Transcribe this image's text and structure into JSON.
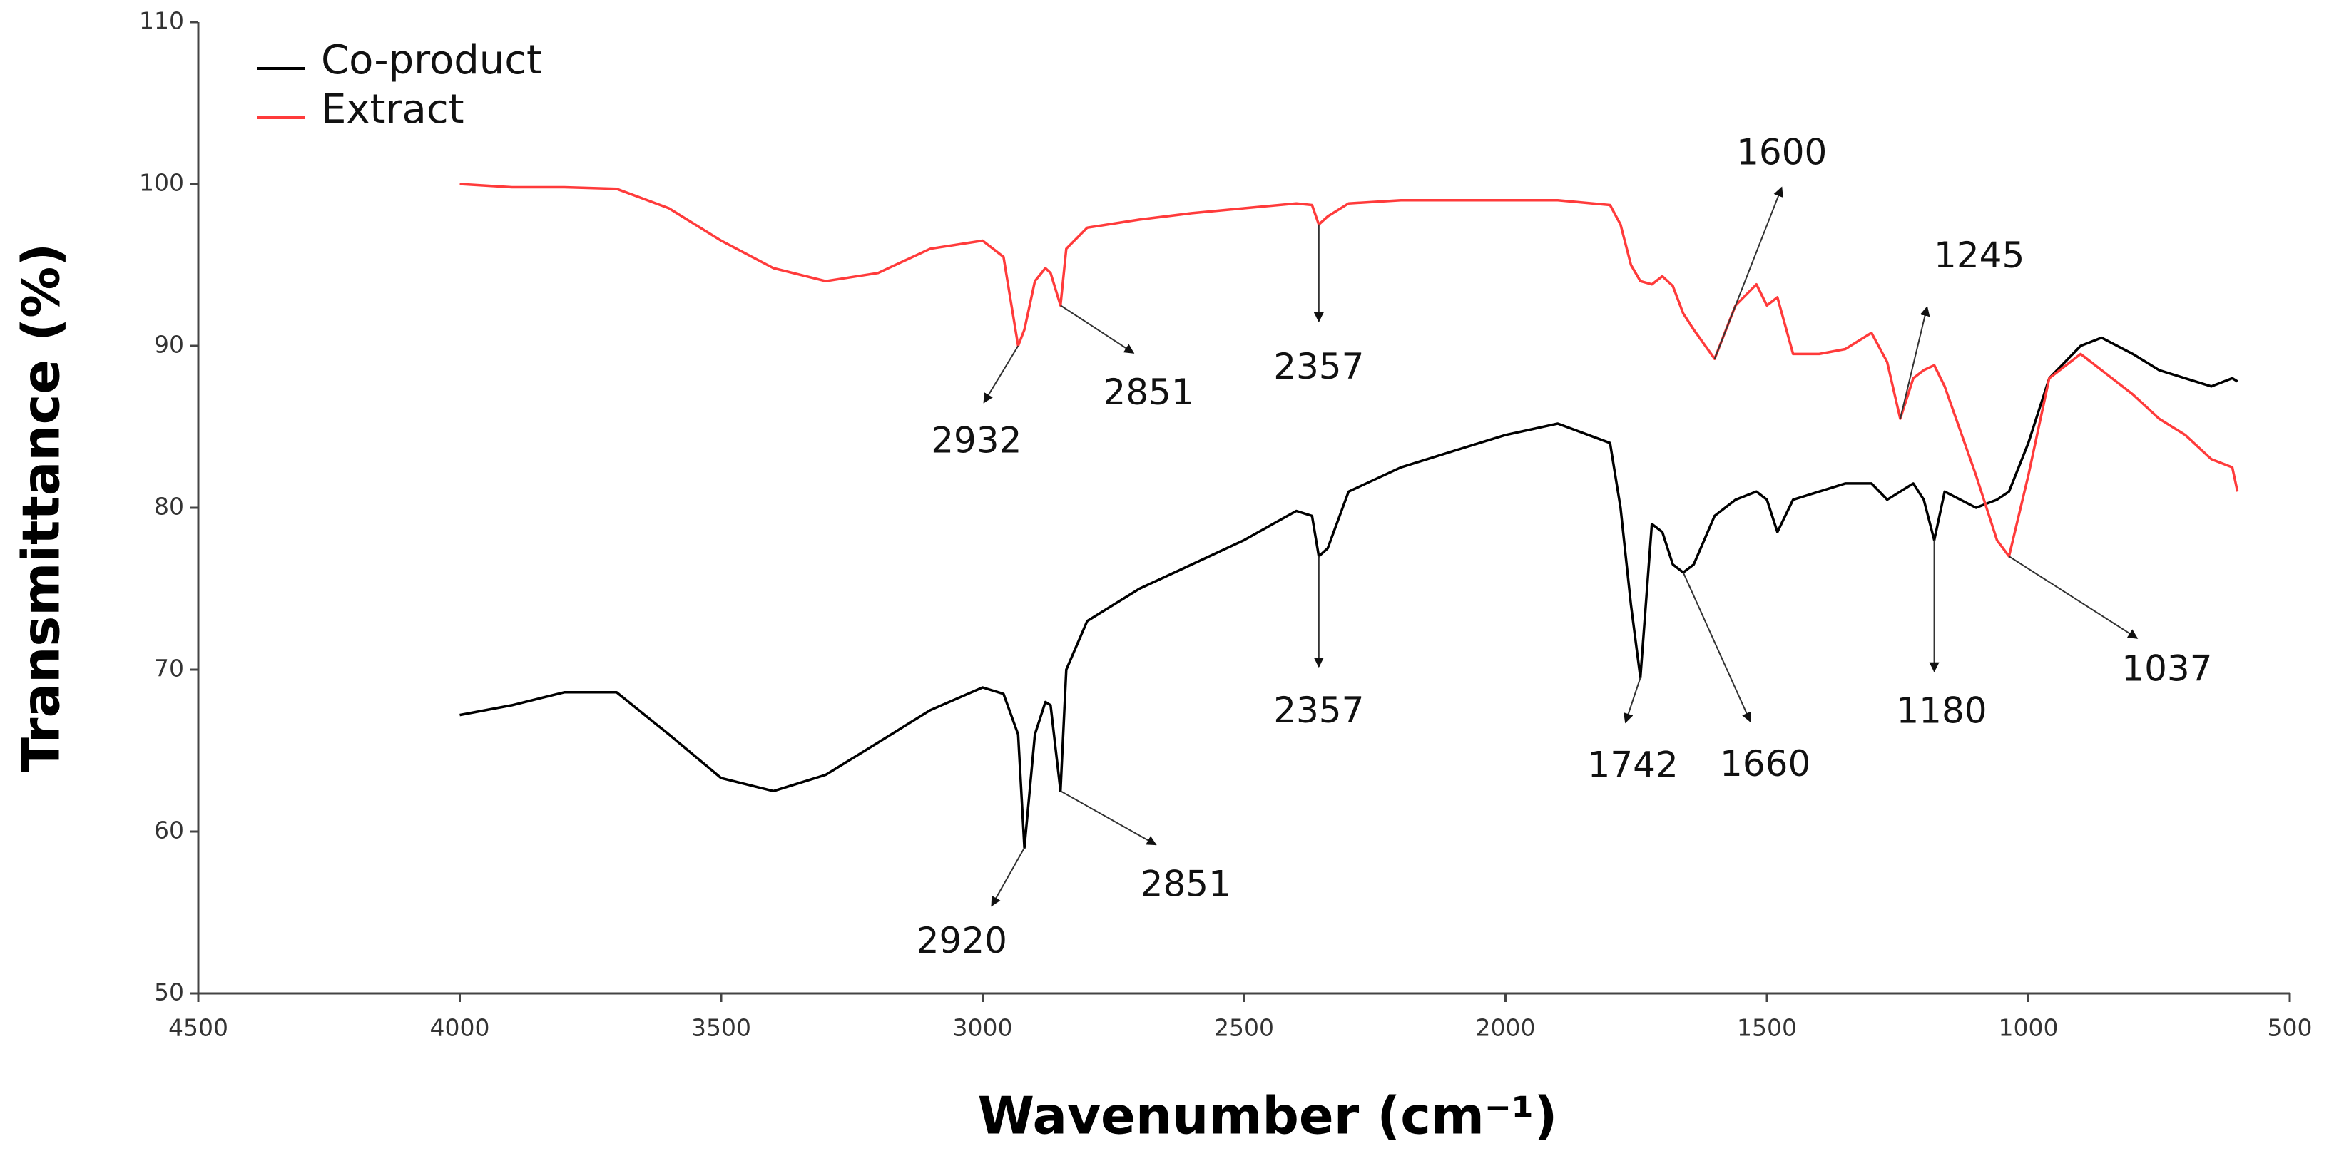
{
  "chart_data": {
    "type": "line",
    "xlabel": "Wavenumber (cm⁻¹)",
    "ylabel": "Transmittance (%)",
    "xlim": [
      4500,
      500
    ],
    "xticks": [
      4500,
      4000,
      3500,
      3000,
      2500,
      2000,
      1500,
      1000,
      500
    ],
    "ylim": [
      50,
      110
    ],
    "yticks": [
      50,
      60,
      70,
      80,
      90,
      100,
      110
    ],
    "legend": "upper left",
    "x": [
      4000,
      3900,
      3800,
      3700,
      3600,
      3500,
      3400,
      3300,
      3200,
      3100,
      3000,
      2960,
      2932,
      2920,
      2900,
      2880,
      2870,
      2851,
      2840,
      2800,
      2700,
      2600,
      2500,
      2400,
      2370,
      2357,
      2340,
      2300,
      2200,
      2100,
      2000,
      1900,
      1800,
      1780,
      1760,
      1742,
      1720,
      1700,
      1680,
      1660,
      1640,
      1600,
      1560,
      1520,
      1500,
      1480,
      1450,
      1400,
      1350,
      1300,
      1270,
      1245,
      1220,
      1200,
      1180,
      1160,
      1100,
      1060,
      1037,
      1000,
      960,
      900,
      860,
      800,
      750,
      700,
      650,
      610,
      600
    ],
    "series": [
      {
        "name": "Co-product",
        "color": "#000000",
        "values": [
          67.2,
          67.8,
          68.6,
          68.6,
          66,
          63.3,
          62.5,
          63.5,
          65.5,
          67.5,
          68.9,
          68.5,
          66,
          59,
          66,
          68,
          67.8,
          62.5,
          70,
          73,
          75,
          76.5,
          78,
          79.8,
          79.5,
          77,
          77.5,
          81,
          82.5,
          83.5,
          84.5,
          85.2,
          84,
          80,
          74,
          69.5,
          79,
          78.5,
          76.5,
          76,
          76.5,
          79.5,
          80.5,
          81,
          80.5,
          78.5,
          80.5,
          81,
          81.5,
          81.5,
          80.5,
          81,
          81.5,
          80.5,
          78,
          81,
          80,
          80.5,
          81,
          84,
          88,
          90,
          90.5,
          89.5,
          88.5,
          88,
          87.5,
          88,
          87.8
        ]
      },
      {
        "name": "Extract",
        "color": "#ff3b3b",
        "values": [
          100,
          99.8,
          99.8,
          99.7,
          98.5,
          96.5,
          94.8,
          94,
          94.5,
          96,
          96.5,
          95.5,
          90,
          91,
          94,
          94.8,
          94.5,
          92.5,
          96,
          97.3,
          97.8,
          98.2,
          98.5,
          98.8,
          98.7,
          97.5,
          98,
          98.8,
          99,
          99,
          99,
          99,
          98.7,
          97.5,
          95,
          94,
          93.8,
          94.3,
          93.7,
          92,
          91,
          89.2,
          92.5,
          93.8,
          92.5,
          93,
          89.5,
          89.5,
          89.8,
          90.8,
          89,
          85.5,
          88,
          88.5,
          88.8,
          87.5,
          82,
          78,
          77,
          82,
          88,
          89.5,
          88.5,
          87,
          85.5,
          84.5,
          83,
          82.5,
          81
        ]
      }
    ],
    "annotations": [
      {
        "text": "2932",
        "x": 2932,
        "y": 90
      },
      {
        "text": "2851",
        "x": 2851,
        "y": 92.5
      },
      {
        "text": "2357",
        "x": 2357,
        "y": 97.5
      },
      {
        "text": "1600",
        "x": 1600,
        "y": 89.2
      },
      {
        "text": "1245",
        "x": 1245,
        "y": 85.5
      },
      {
        "text": "1037",
        "x": 1037,
        "y": 77
      },
      {
        "text": "2920",
        "x": 2920,
        "y": 59
      },
      {
        "text": "2851",
        "x": 2851,
        "y": 62.5
      },
      {
        "text": "2357",
        "x": 2357,
        "y": 77
      },
      {
        "text": "1742",
        "x": 1742,
        "y": 69.5
      },
      {
        "text": "1660",
        "x": 1660,
        "y": 76
      },
      {
        "text": "1180",
        "x": 1180,
        "y": 78
      }
    ]
  }
}
